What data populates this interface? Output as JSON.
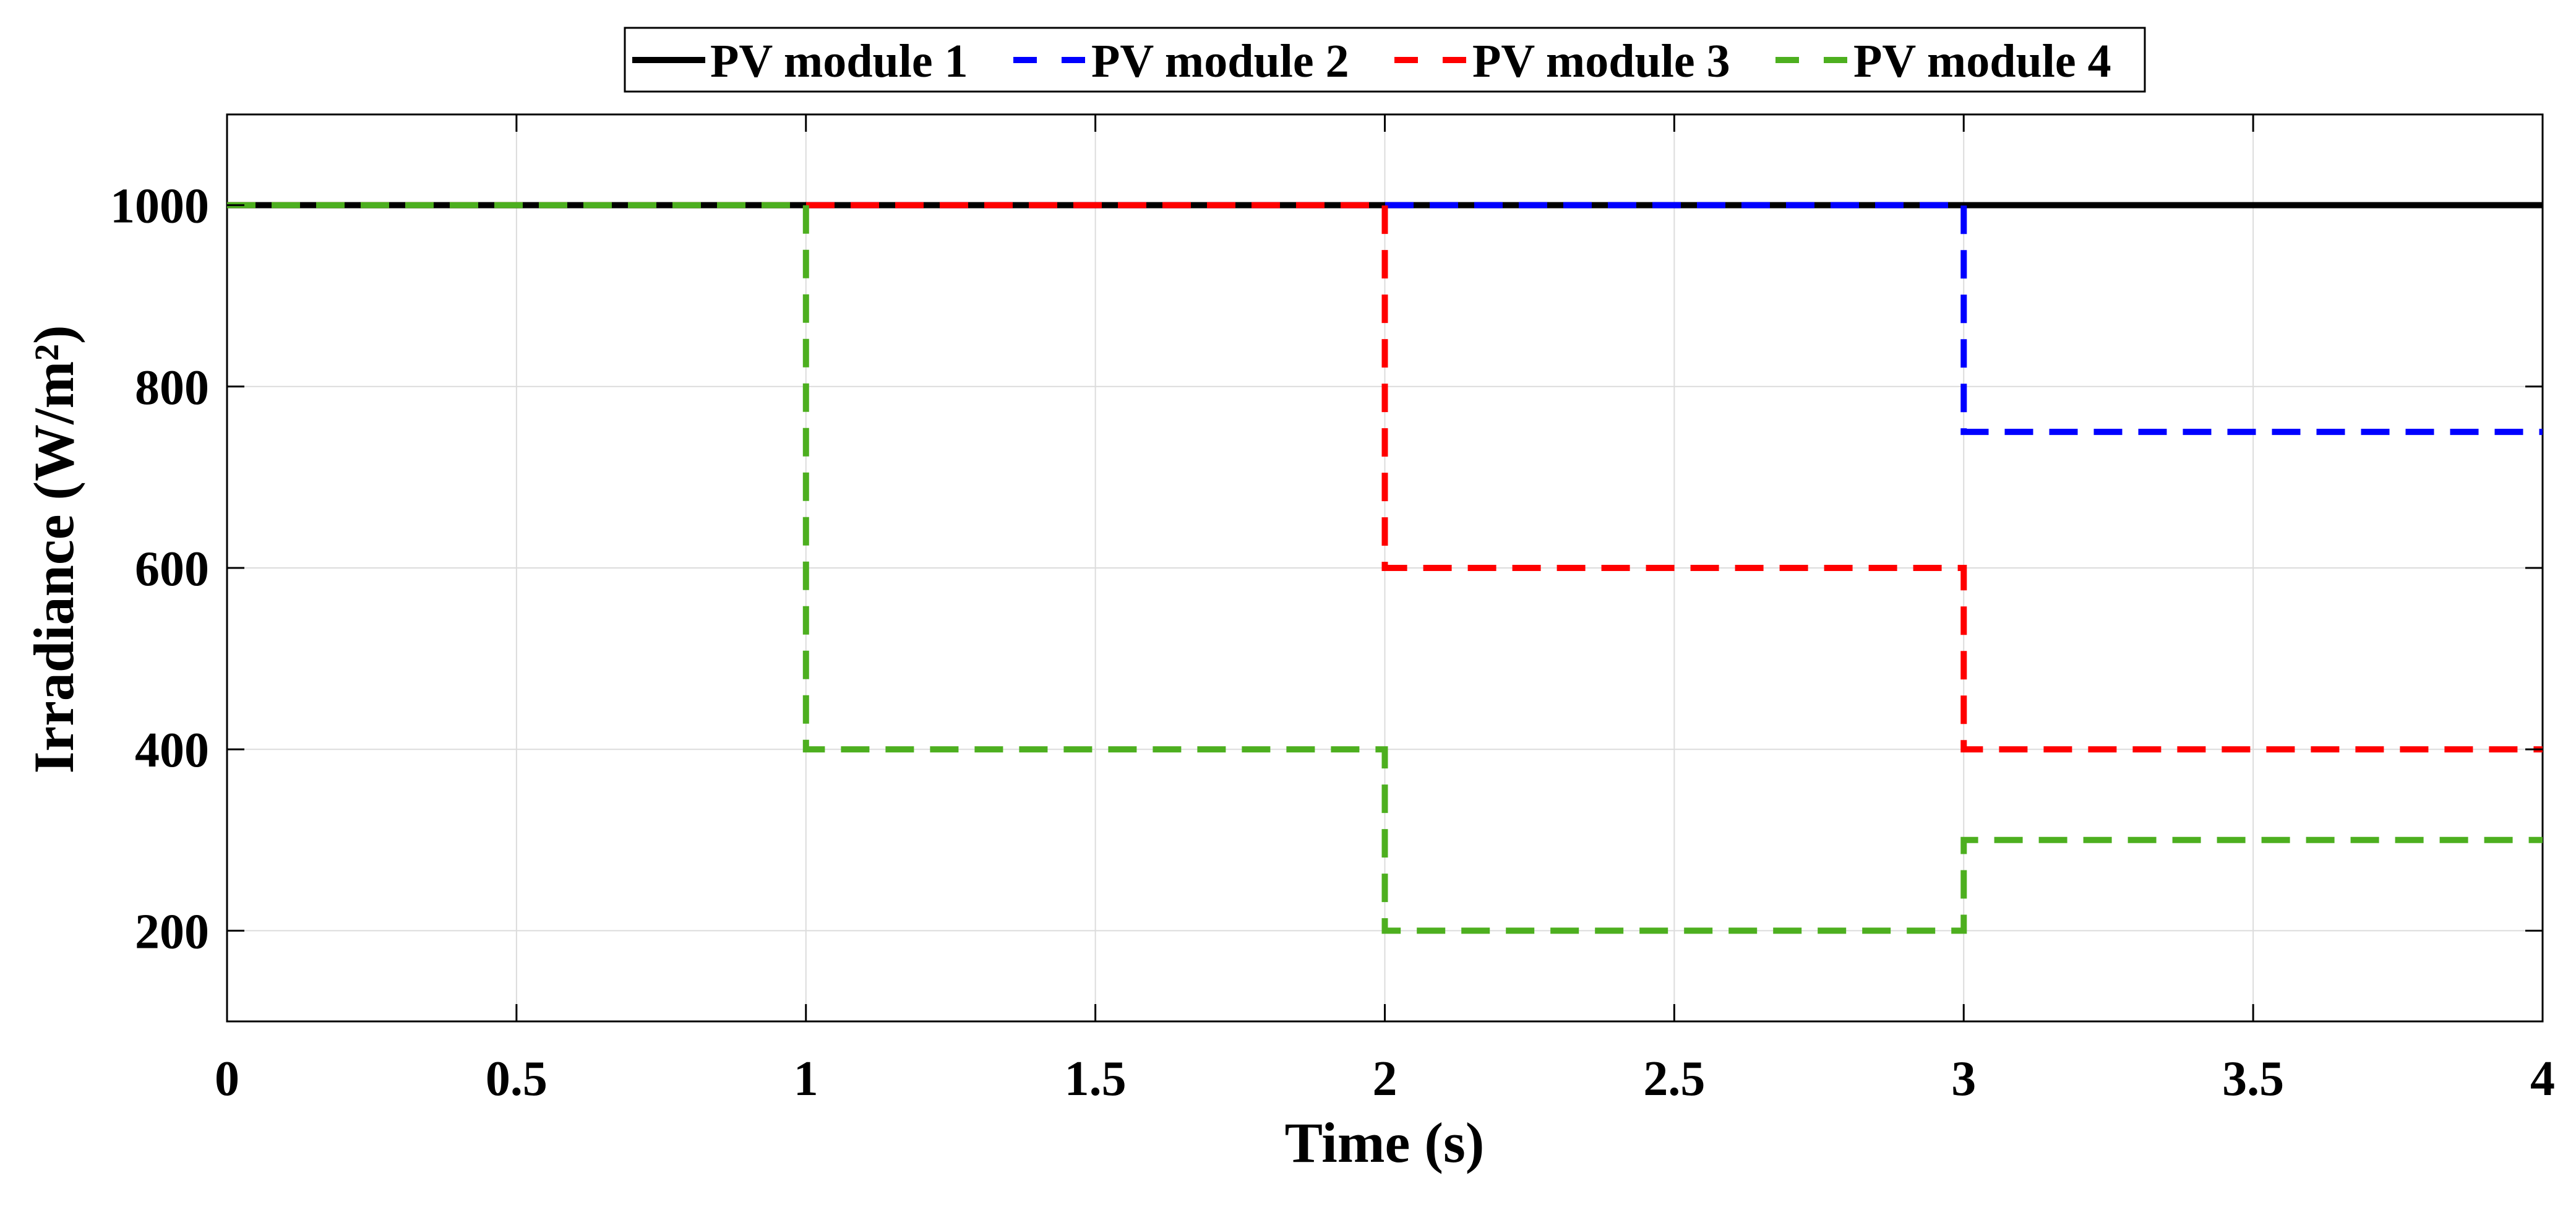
{
  "chart_data": {
    "type": "line",
    "title": "",
    "xlabel": "Time (s)",
    "ylabel": "Irradiance (W/m²)",
    "xlim": [
      0,
      4
    ],
    "ylim": [
      100,
      1100
    ],
    "xticks": [
      0,
      0.5,
      1,
      1.5,
      2,
      2.5,
      3,
      3.5,
      4
    ],
    "xtick_labels": [
      "0",
      "0.5",
      "1",
      "1.5",
      "2",
      "2.5",
      "3",
      "3.5",
      "4"
    ],
    "yticks": [
      200,
      400,
      600,
      800,
      1000
    ],
    "ytick_labels": [
      "200",
      "400",
      "600",
      "800",
      "1000"
    ],
    "grid": true,
    "legend_position": "top-center",
    "series": [
      {
        "name": "PV module 1",
        "color": "#000000",
        "style": "solid",
        "x": [
          0,
          4
        ],
        "y": [
          1000,
          1000
        ]
      },
      {
        "name": "PV module 2",
        "color": "#0000ff",
        "style": "dashed",
        "x": [
          0,
          3,
          3,
          4
        ],
        "y": [
          1000,
          1000,
          750,
          750
        ]
      },
      {
        "name": "PV module 3",
        "color": "#ff0000",
        "style": "dashed",
        "x": [
          0,
          2,
          2,
          3,
          3,
          4
        ],
        "y": [
          1000,
          1000,
          600,
          600,
          400,
          400
        ]
      },
      {
        "name": "PV module 4",
        "color": "#4daf1f",
        "style": "dashed",
        "x": [
          0,
          1,
          1,
          2,
          2,
          3,
          3,
          4
        ],
        "y": [
          1000,
          1000,
          400,
          400,
          200,
          200,
          300,
          300
        ]
      }
    ]
  }
}
